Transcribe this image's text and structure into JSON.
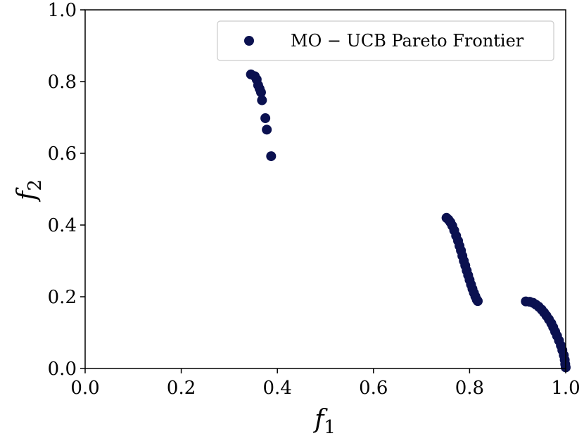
{
  "chart_data": {
    "type": "scatter",
    "xlabel": {
      "base": "f",
      "sub": "1"
    },
    "ylabel": {
      "base": "f",
      "sub": "2"
    },
    "xlim": [
      0.0,
      1.0
    ],
    "ylim": [
      0.0,
      1.0
    ],
    "xticks": [
      "0.0",
      "0.2",
      "0.4",
      "0.6",
      "0.8",
      "1.0"
    ],
    "yticks": [
      "0.0",
      "0.2",
      "0.4",
      "0.6",
      "0.8",
      "1.0"
    ],
    "grid": false,
    "legend_position": "top-right",
    "series": [
      {
        "name": "MO − UCB Pareto Frontier",
        "color": "#0b1150",
        "points": [
          [
            0.345,
            0.82
          ],
          [
            0.353,
            0.815
          ],
          [
            0.357,
            0.806
          ],
          [
            0.36,
            0.79
          ],
          [
            0.363,
            0.78
          ],
          [
            0.366,
            0.77
          ],
          [
            0.368,
            0.748
          ],
          [
            0.375,
            0.698
          ],
          [
            0.378,
            0.666
          ],
          [
            0.387,
            0.592
          ],
          [
            0.752,
            0.42
          ],
          [
            0.756,
            0.415
          ],
          [
            0.76,
            0.408
          ],
          [
            0.764,
            0.398
          ],
          [
            0.768,
            0.385
          ],
          [
            0.772,
            0.37
          ],
          [
            0.776,
            0.356
          ],
          [
            0.779,
            0.342
          ],
          [
            0.782,
            0.329
          ],
          [
            0.785,
            0.314
          ],
          [
            0.788,
            0.3
          ],
          [
            0.791,
            0.287
          ],
          [
            0.794,
            0.273
          ],
          [
            0.797,
            0.26
          ],
          [
            0.8,
            0.247
          ],
          [
            0.803,
            0.234
          ],
          [
            0.806,
            0.222
          ],
          [
            0.809,
            0.211
          ],
          [
            0.812,
            0.201
          ],
          [
            0.815,
            0.192
          ],
          [
            0.817,
            0.188
          ],
          [
            0.917,
            0.187
          ],
          [
            0.925,
            0.186
          ],
          [
            0.932,
            0.183
          ],
          [
            0.938,
            0.178
          ],
          [
            0.944,
            0.172
          ],
          [
            0.95,
            0.164
          ],
          [
            0.955,
            0.156
          ],
          [
            0.96,
            0.147
          ],
          [
            0.965,
            0.137
          ],
          [
            0.97,
            0.126
          ],
          [
            0.974,
            0.115
          ],
          [
            0.978,
            0.103
          ],
          [
            0.982,
            0.091
          ],
          [
            0.986,
            0.078
          ],
          [
            0.99,
            0.064
          ],
          [
            0.993,
            0.051
          ],
          [
            0.996,
            0.037
          ],
          [
            0.998,
            0.024
          ],
          [
            0.999,
            0.012
          ],
          [
            1.0,
            0.003
          ]
        ]
      }
    ]
  }
}
